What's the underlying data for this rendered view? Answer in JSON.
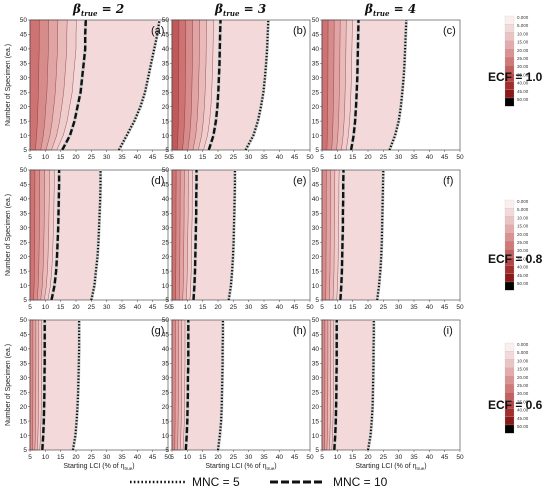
{
  "columns": [
    {
      "title": "β",
      "sub": "true",
      "eq": " = 2"
    },
    {
      "title": "β",
      "sub": "true",
      "eq": " = 3"
    },
    {
      "title": "β",
      "sub": "true",
      "eq": " = 4"
    }
  ],
  "rows": [
    {
      "ecf_label": "ECF = 1.0"
    },
    {
      "ecf_label": "ECF = 0.8"
    },
    {
      "ecf_label": "ECF = 0.6"
    }
  ],
  "y_axis_label": "Number of Specimen (ea.)",
  "x_axis_label": "Starting LCI (% of η",
  "x_axis_label_sub": "true",
  "x_axis_label_end": ")",
  "legend": {
    "mnc5_label": "MNC = 5",
    "mnc10_label": "MNC = 10"
  },
  "colorbar": {
    "labels": [
      "0.000",
      "5.000",
      "10.00",
      "15.00",
      "20.00",
      "25.00",
      "30.00",
      "35.00",
      "40.00",
      "45.00",
      "50.00"
    ],
    "colors": [
      "#fbeeee",
      "#f3d9d9",
      "#ecc3c3",
      "#e3abab",
      "#da9191",
      "#d07979",
      "#c45f5f",
      "#b64545",
      "#a22e2e",
      "#8a1a1a",
      "#000000"
    ]
  },
  "chart_data": [
    {
      "type": "line",
      "panel": "(a)",
      "beta_true": 2,
      "ecf": 1.0,
      "xlim": [
        5,
        50
      ],
      "ylim": [
        5,
        50
      ],
      "xticks": [
        5,
        10,
        15,
        20,
        25,
        30,
        35,
        40,
        45,
        50
      ],
      "yticks": [
        5,
        10,
        15,
        20,
        25,
        30,
        35,
        40,
        45,
        50
      ],
      "x": [
        5,
        10,
        15,
        20,
        25,
        30,
        35,
        40,
        45,
        50
      ],
      "series": [
        {
          "name": "MNC = 5",
          "values": [
            34,
            36.5,
            39,
            41,
            42.5,
            43.5,
            44.5,
            45.5,
            46.5,
            47.2
          ]
        },
        {
          "name": "MNC = 10",
          "values": [
            15.5,
            18,
            19.5,
            20.5,
            21.5,
            22,
            22.5,
            23,
            23,
            23.2
          ]
        }
      ]
    },
    {
      "type": "line",
      "panel": "(b)",
      "beta_true": 3,
      "ecf": 1.0,
      "xlim": [
        5,
        50
      ],
      "ylim": [
        5,
        50
      ],
      "xticks": [
        5,
        10,
        15,
        20,
        25,
        30,
        35,
        40,
        45,
        50
      ],
      "yticks": [
        5,
        10,
        15,
        20,
        25,
        30,
        35,
        40,
        45,
        50
      ],
      "x": [
        5,
        10,
        15,
        20,
        25,
        30,
        35,
        40,
        45,
        50
      ],
      "series": [
        {
          "name": "MNC = 5",
          "values": [
            29,
            31.5,
            33,
            34,
            34.8,
            35.3,
            35.7,
            36,
            36.2,
            36.4
          ]
        },
        {
          "name": "MNC = 10",
          "values": [
            17,
            18.5,
            19.3,
            19.8,
            20.1,
            20.3,
            20.5,
            20.6,
            20.7,
            20.8
          ]
        }
      ]
    },
    {
      "type": "line",
      "panel": "(c)",
      "beta_true": 4,
      "ecf": 1.0,
      "xlim": [
        5,
        50
      ],
      "ylim": [
        5,
        50
      ],
      "xticks": [
        5,
        10,
        15,
        20,
        25,
        30,
        35,
        40,
        45,
        50
      ],
      "yticks": [
        5,
        10,
        15,
        20,
        25,
        30,
        35,
        40,
        45,
        50
      ],
      "x": [
        5,
        10,
        15,
        20,
        25,
        30,
        35,
        40,
        45,
        50
      ],
      "series": [
        {
          "name": "MNC = 5",
          "values": [
            27,
            28.8,
            30,
            30.7,
            31.2,
            31.6,
            31.9,
            32.1,
            32.3,
            32.5
          ]
        },
        {
          "name": "MNC = 10",
          "values": [
            14.5,
            15.3,
            15.8,
            16.1,
            16.3,
            16.5,
            16.6,
            16.7,
            16.8,
            16.9
          ]
        }
      ]
    },
    {
      "type": "line",
      "panel": "(d)",
      "beta_true": 2,
      "ecf": 0.8,
      "xlim": [
        5,
        50
      ],
      "ylim": [
        5,
        50
      ],
      "xticks": [
        5,
        10,
        15,
        20,
        25,
        30,
        35,
        40,
        45,
        50
      ],
      "yticks": [
        5,
        10,
        15,
        20,
        25,
        30,
        35,
        40,
        45,
        50
      ],
      "x": [
        5,
        10,
        15,
        20,
        25,
        30,
        35,
        40,
        45,
        50
      ],
      "series": [
        {
          "name": "MNC = 5",
          "values": [
            25,
            26,
            26.5,
            27,
            27.3,
            27.5,
            27.7,
            27.9,
            28,
            28
          ]
        },
        {
          "name": "MNC = 10",
          "values": [
            12,
            13,
            13.5,
            13.8,
            14,
            14.2,
            14.3,
            14.4,
            14.5,
            14.5
          ]
        }
      ]
    },
    {
      "type": "line",
      "panel": "(e)",
      "beta_true": 3,
      "ecf": 0.8,
      "xlim": [
        5,
        50
      ],
      "ylim": [
        5,
        50
      ],
      "xticks": [
        5,
        10,
        15,
        20,
        25,
        30,
        35,
        40,
        45,
        50
      ],
      "yticks": [
        5,
        10,
        15,
        20,
        25,
        30,
        35,
        40,
        45,
        50
      ],
      "x": [
        5,
        10,
        15,
        20,
        25,
        30,
        35,
        40,
        45,
        50
      ],
      "series": [
        {
          "name": "MNC = 5",
          "values": [
            23.5,
            24.2,
            24.6,
            24.9,
            25.1,
            25.2,
            25.3,
            25.4,
            25.5,
            25.5
          ]
        },
        {
          "name": "MNC = 10",
          "values": [
            12,
            12.3,
            12.5,
            12.6,
            12.7,
            12.8,
            12.9,
            12.9,
            13,
            13
          ]
        }
      ]
    },
    {
      "type": "line",
      "panel": "(f)",
      "beta_true": 4,
      "ecf": 0.8,
      "xlim": [
        5,
        50
      ],
      "ylim": [
        5,
        50
      ],
      "xticks": [
        5,
        10,
        15,
        20,
        25,
        30,
        35,
        40,
        45,
        50
      ],
      "yticks": [
        5,
        10,
        15,
        20,
        25,
        30,
        35,
        40,
        45,
        50
      ],
      "x": [
        5,
        10,
        15,
        20,
        25,
        30,
        35,
        40,
        45,
        50
      ],
      "series": [
        {
          "name": "MNC = 5",
          "values": [
            23,
            23.6,
            24,
            24.3,
            24.5,
            24.6,
            24.7,
            24.8,
            24.9,
            25
          ]
        },
        {
          "name": "MNC = 10",
          "values": [
            11,
            11.3,
            11.5,
            11.6,
            11.7,
            11.8,
            11.8,
            11.9,
            11.9,
            12
          ]
        }
      ]
    },
    {
      "type": "line",
      "panel": "(g)",
      "beta_true": 2,
      "ecf": 0.6,
      "xlim": [
        5,
        50
      ],
      "ylim": [
        5,
        50
      ],
      "xticks": [
        5,
        10,
        15,
        20,
        25,
        30,
        35,
        40,
        45,
        50
      ],
      "yticks": [
        5,
        10,
        15,
        20,
        25,
        30,
        35,
        40,
        45,
        50
      ],
      "x": [
        5,
        10,
        15,
        20,
        25,
        30,
        35,
        40,
        45,
        50
      ],
      "series": [
        {
          "name": "MNC = 5",
          "values": [
            19,
            19.8,
            20.2,
            20.5,
            20.7,
            20.8,
            20.9,
            21,
            21,
            21
          ]
        },
        {
          "name": "MNC = 10",
          "values": [
            9,
            9.3,
            9.5,
            9.6,
            9.7,
            9.7,
            9.8,
            9.8,
            9.8,
            9.8
          ]
        }
      ]
    },
    {
      "type": "line",
      "panel": "(h)",
      "beta_true": 3,
      "ecf": 0.6,
      "xlim": [
        5,
        50
      ],
      "ylim": [
        5,
        50
      ],
      "xticks": [
        5,
        10,
        15,
        20,
        25,
        30,
        35,
        40,
        45,
        50
      ],
      "yticks": [
        5,
        10,
        15,
        20,
        25,
        30,
        35,
        40,
        45,
        50
      ],
      "x": [
        5,
        10,
        15,
        20,
        25,
        30,
        35,
        40,
        45,
        50
      ],
      "series": [
        {
          "name": "MNC = 5",
          "values": [
            20,
            20.6,
            21,
            21.2,
            21.3,
            21.4,
            21.5,
            21.5,
            21.6,
            21.6
          ]
        },
        {
          "name": "MNC = 10",
          "values": [
            9.5,
            9.8,
            10,
            10.1,
            10.2,
            10.2,
            10.3,
            10.3,
            10.3,
            10.3
          ]
        }
      ]
    },
    {
      "type": "line",
      "panel": "(i)",
      "beta_true": 4,
      "ecf": 0.6,
      "xlim": [
        5,
        50
      ],
      "ylim": [
        5,
        50
      ],
      "xticks": [
        5,
        10,
        15,
        20,
        25,
        30,
        35,
        40,
        45,
        50
      ],
      "yticks": [
        5,
        10,
        15,
        20,
        25,
        30,
        35,
        40,
        45,
        50
      ],
      "x": [
        5,
        10,
        15,
        20,
        25,
        30,
        35,
        40,
        45,
        50
      ],
      "series": [
        {
          "name": "MNC = 5",
          "values": [
            20,
            20.8,
            21.2,
            21.5,
            21.6,
            21.7,
            21.8,
            21.8,
            21.9,
            21.9
          ]
        },
        {
          "name": "MNC = 10",
          "values": [
            9,
            9.3,
            9.5,
            9.6,
            9.7,
            9.7,
            9.8,
            9.8,
            9.8,
            9.8
          ]
        }
      ]
    }
  ]
}
